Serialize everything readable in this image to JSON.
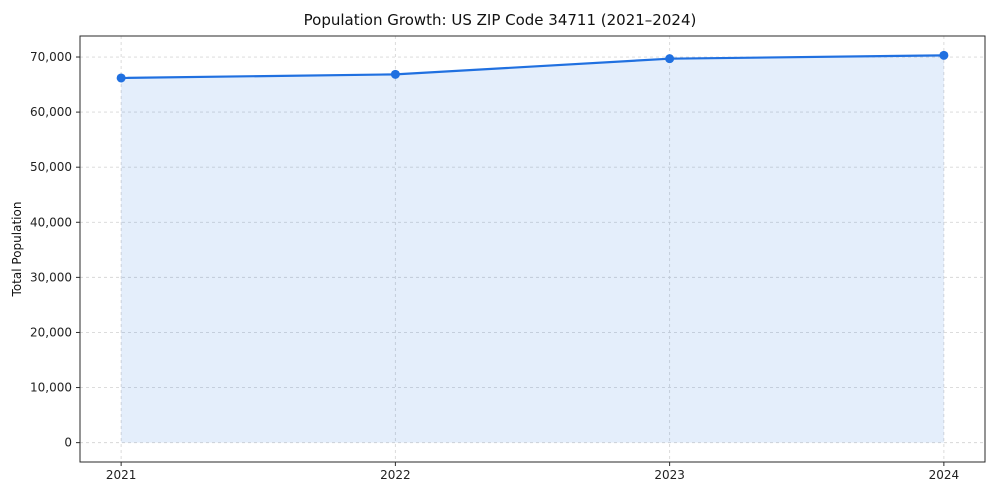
{
  "figure": {
    "background": "#ffffff"
  },
  "chart_data": {
    "type": "line",
    "title": "Population Growth: US ZIP Code 34711 (2021–2024)",
    "xlabel": "",
    "ylabel": "Total Population",
    "x": [
      2021,
      2022,
      2023,
      2024
    ],
    "series": [
      {
        "name": "Total Population",
        "values": [
          66200,
          66850,
          69700,
          70300
        ]
      }
    ],
    "xticks": [
      2021,
      2022,
      2023,
      2024
    ],
    "yticks": [
      0,
      10000,
      20000,
      30000,
      40000,
      50000,
      60000,
      70000
    ],
    "xlim": [
      2020.85,
      2024.15
    ],
    "ylim": [
      -3515,
      73815
    ],
    "grid": {
      "show": true,
      "style": "dashed",
      "color": "#d7d7d7"
    },
    "legend": "none",
    "colors": {
      "line": "#2070e0",
      "marker": "#2070e0",
      "fill": "rgba(32,112,224,0.12)",
      "spine": "#2a2a2a",
      "tick_label": "#222222"
    },
    "area_fill_to_zero": true,
    "marker_style": "circle"
  }
}
